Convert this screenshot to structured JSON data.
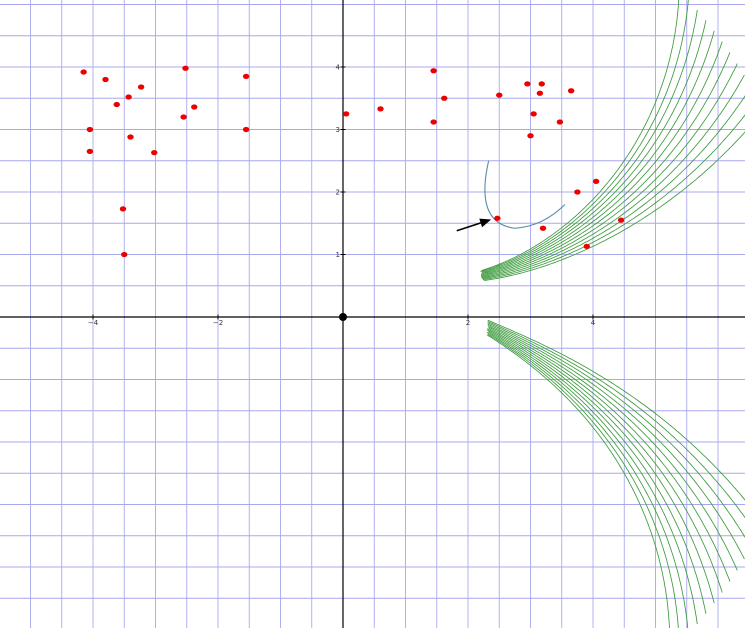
{
  "chart_data": {
    "type": "scatter",
    "x_ticks": [
      -4,
      -2,
      2,
      4
    ],
    "y_ticks": [
      1,
      2,
      3,
      4
    ],
    "x_range": [
      -5.45,
      6.45
    ],
    "y_range": [
      -5.1,
      5.0
    ],
    "grid": true,
    "colors": {
      "grid": "#a8a8ee",
      "axis": "#000000",
      "field_lines": "#3c9a3c",
      "points": "#ee0000",
      "curve": "#5a8aaa",
      "arrow": "#000000"
    },
    "points": [
      {
        "x": -4.15,
        "y": 3.92
      },
      {
        "x": -3.8,
        "y": 3.8
      },
      {
        "x": -3.43,
        "y": 3.52
      },
      {
        "x": -3.23,
        "y": 3.68
      },
      {
        "x": -3.62,
        "y": 3.4
      },
      {
        "x": -2.52,
        "y": 3.98
      },
      {
        "x": -2.38,
        "y": 3.36
      },
      {
        "x": -2.55,
        "y": 3.2
      },
      {
        "x": -1.55,
        "y": 3.85
      },
      {
        "x": -1.55,
        "y": 3.0
      },
      {
        "x": -4.05,
        "y": 3.0
      },
      {
        "x": -3.4,
        "y": 2.88
      },
      {
        "x": -3.02,
        "y": 2.63
      },
      {
        "x": -4.05,
        "y": 2.65
      },
      {
        "x": -3.52,
        "y": 1.73
      },
      {
        "x": -3.5,
        "y": 1.0
      },
      {
        "x": 0.05,
        "y": 3.25
      },
      {
        "x": 0.6,
        "y": 3.33
      },
      {
        "x": 1.45,
        "y": 3.94
      },
      {
        "x": 1.62,
        "y": 3.5
      },
      {
        "x": 1.45,
        "y": 3.12
      },
      {
        "x": 2.5,
        "y": 3.55
      },
      {
        "x": 2.95,
        "y": 3.73
      },
      {
        "x": 3.18,
        "y": 3.73
      },
      {
        "x": 3.15,
        "y": 3.58
      },
      {
        "x": 3.65,
        "y": 3.62
      },
      {
        "x": 3.05,
        "y": 3.25
      },
      {
        "x": 3.47,
        "y": 3.12
      },
      {
        "x": 3.0,
        "y": 2.9
      },
      {
        "x": 4.05,
        "y": 2.17
      },
      {
        "x": 3.75,
        "y": 2.0
      },
      {
        "x": 4.45,
        "y": 1.55
      },
      {
        "x": 3.2,
        "y": 1.42
      },
      {
        "x": 3.9,
        "y": 1.13
      },
      {
        "x": 2.47,
        "y": 1.58
      }
    ],
    "origin_point": {
      "x": 0,
      "y": 0
    }
  }
}
